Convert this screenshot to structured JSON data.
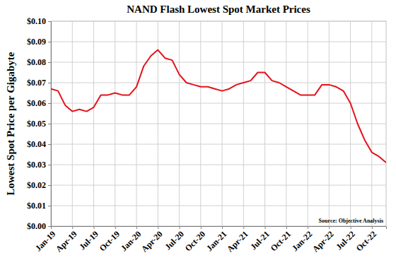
{
  "chart_data": {
    "type": "line",
    "title": "NAND Flash Lowest Spot Market Prices",
    "y_label": "Lowest Spot Price per Gigabyte",
    "annotation": "Source: Objective Analysis",
    "categories": [
      "Jan-19",
      null,
      null,
      "Apr-19",
      null,
      null,
      "Jul-19",
      null,
      null,
      "Oct-19",
      null,
      null,
      "Jan-20",
      null,
      null,
      "Apr-20",
      null,
      null,
      "Jul-20",
      null,
      null,
      "Oct-20",
      null,
      null,
      "Jan-21",
      null,
      null,
      "Apr-21",
      null,
      null,
      "Jul-21",
      null,
      null,
      "Oct-21",
      null,
      null,
      "Jan-22",
      null,
      null,
      "Apr-22",
      null,
      null,
      "Jul-22",
      null,
      null,
      "Oct-22",
      null,
      null
    ],
    "values": [
      0.067,
      0.066,
      0.059,
      0.056,
      0.057,
      0.056,
      0.058,
      0.064,
      0.064,
      0.065,
      0.064,
      0.064,
      0.068,
      0.078,
      0.083,
      0.086,
      0.082,
      0.081,
      0.074,
      0.07,
      0.069,
      0.068,
      0.068,
      0.067,
      0.066,
      0.067,
      0.069,
      0.07,
      0.071,
      0.075,
      0.075,
      0.071,
      0.07,
      0.068,
      0.066,
      0.064,
      0.064,
      0.064,
      0.069,
      0.069,
      0.068,
      0.066,
      0.06,
      0.05,
      0.042,
      0.036,
      0.034,
      0.031
    ],
    "color": "#e3121b",
    "ylim": [
      0,
      0.1
    ],
    "yticks": [
      {
        "value": 0,
        "label": "$0.00"
      },
      {
        "value": 0.01,
        "label": "$0.01"
      },
      {
        "value": 0.02,
        "label": "$0.02"
      },
      {
        "value": 0.03,
        "label": "$0.03"
      },
      {
        "value": 0.04,
        "label": "$0.04"
      },
      {
        "value": 0.05,
        "label": "$0.05"
      },
      {
        "value": 0.06,
        "label": "$0.06"
      },
      {
        "value": 0.07,
        "label": "$0.07"
      },
      {
        "value": 0.08,
        "label": "$0.08"
      },
      {
        "value": 0.09,
        "label": "$0.09"
      },
      {
        "value": 0.1,
        "label": "$0.10"
      }
    ],
    "grid": true
  }
}
